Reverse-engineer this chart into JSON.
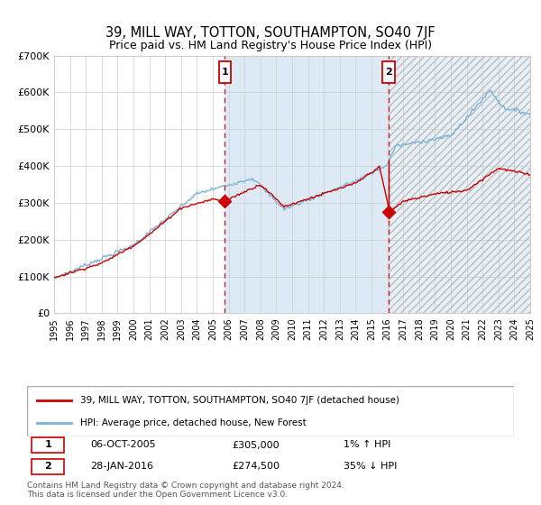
{
  "title": "39, MILL WAY, TOTTON, SOUTHAMPTON, SO40 7JF",
  "subtitle": "Price paid vs. HM Land Registry's House Price Index (HPI)",
  "x_start_year": 1995,
  "x_end_year": 2025,
  "y_min": 0,
  "y_max": 700000,
  "y_ticks": [
    0,
    100000,
    200000,
    300000,
    400000,
    500000,
    600000,
    700000
  ],
  "y_tick_labels": [
    "£0",
    "£100K",
    "£200K",
    "£300K",
    "£400K",
    "£500K",
    "£600K",
    "£700K"
  ],
  "hpi_color": "#7ab3d4",
  "price_color": "#cc0000",
  "plot_bg": "#ffffff",
  "shade_color": "#ddeaf5",
  "grid_color": "#cccccc",
  "sale1_year": 2005.76,
  "sale1_price": 305000,
  "sale1_label": "1",
  "sale1_date": "06-OCT-2005",
  "sale1_pct": "1%",
  "sale1_dir": "↑",
  "sale2_year": 2016.08,
  "sale2_price": 274500,
  "sale2_label": "2",
  "sale2_date": "28-JAN-2016",
  "sale2_pct": "35%",
  "sale2_dir": "↓",
  "legend_line1": "39, MILL WAY, TOTTON, SOUTHAMPTON, SO40 7JF (detached house)",
  "legend_line2": "HPI: Average price, detached house, New Forest",
  "footer1": "Contains HM Land Registry data © Crown copyright and database right 2024.",
  "footer2": "This data is licensed under the Open Government Licence v3.0."
}
